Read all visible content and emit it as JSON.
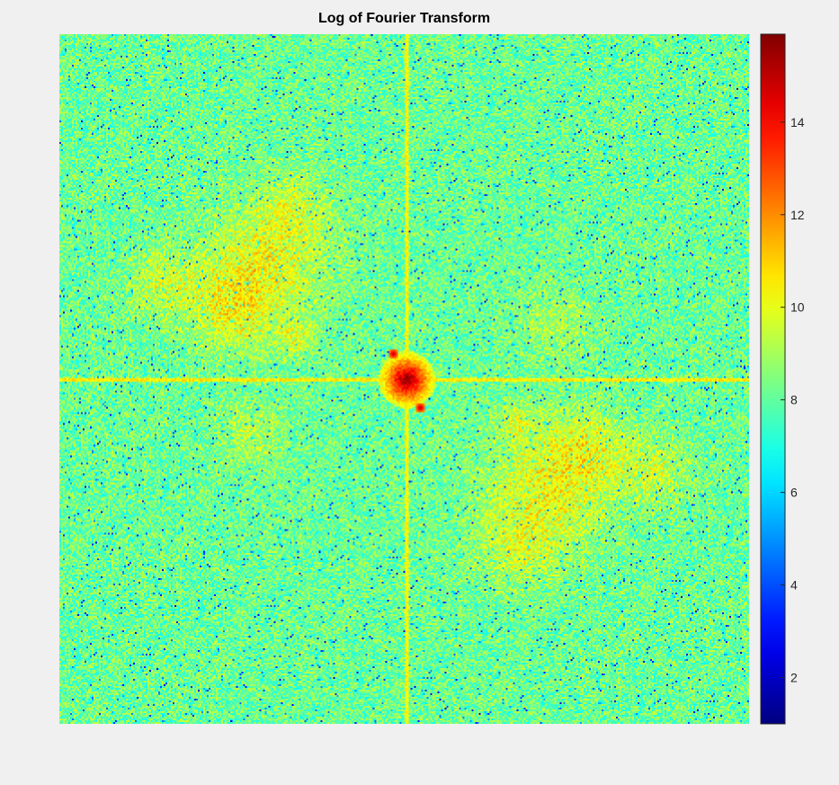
{
  "chart_data": {
    "type": "heatmap",
    "title": "Log of Fourier Transform",
    "xlabel": "",
    "ylabel": "",
    "colormap": "jet",
    "colorbar": {
      "range": [
        1.0,
        15.9
      ],
      "ticks": [
        2,
        4,
        6,
        8,
        10,
        12,
        14
      ],
      "tick_labels": [
        "2",
        "4",
        "6",
        "8",
        "10",
        "12",
        "14"
      ]
    },
    "value_summary": {
      "background_mean": 8.2,
      "background_noise_range": [
        2,
        10
      ],
      "center_peak_value": 15.9,
      "central_axis_lines_value": 10.5,
      "bright_lobe_value": 11
    },
    "grid": false,
    "legend": "none"
  },
  "colors": {
    "figure_background": "#f0f0f0",
    "title_color": "#000000",
    "tick_color": "#262626"
  }
}
